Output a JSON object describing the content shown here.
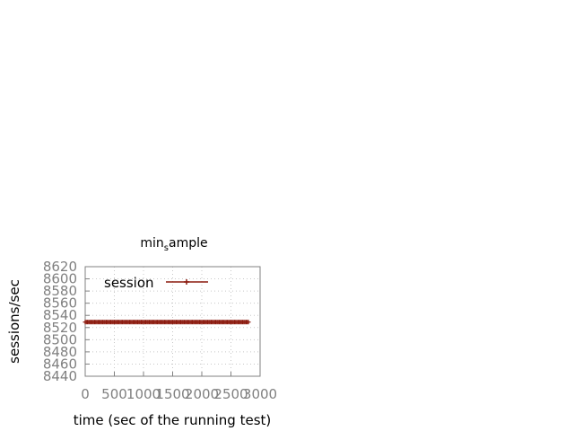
{
  "chart_data": {
    "type": "line",
    "title_main": "min",
    "title_sub": "s",
    "title_rest": "ample",
    "xlabel": "time (sec of the running test)",
    "ylabel": "sessions/sec",
    "xlim": [
      0,
      3000
    ],
    "ylim": [
      8440,
      8620
    ],
    "xticks": [
      0,
      500,
      1000,
      1500,
      2000,
      2500,
      3000
    ],
    "yticks": [
      8440,
      8460,
      8480,
      8500,
      8520,
      8540,
      8560,
      8580,
      8600,
      8620
    ],
    "grid": true,
    "legend_position": "top-left",
    "series": [
      {
        "name": "session",
        "color": "#8b1a0e",
        "x_start": 0,
        "x_end": 2800,
        "x_step": 20,
        "y_value": 8529
      }
    ]
  }
}
